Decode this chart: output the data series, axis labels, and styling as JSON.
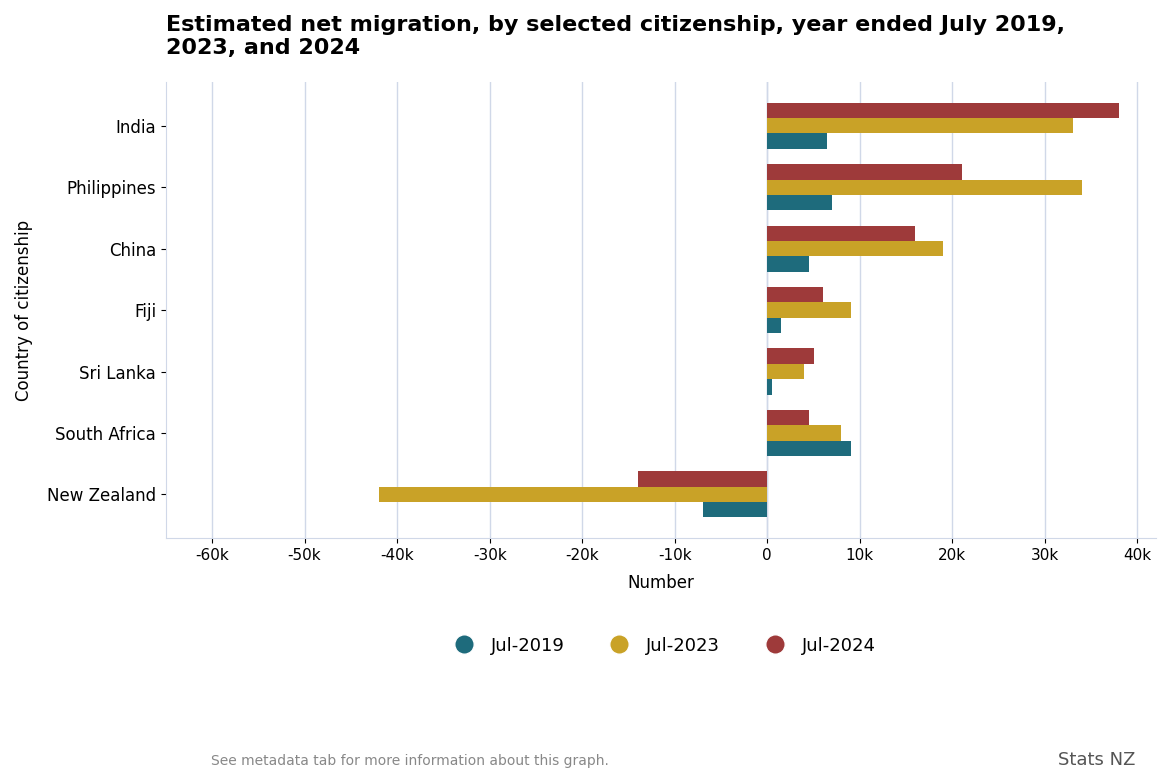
{
  "title": "Estimated net migration, by selected citizenship, year ended July 2019,\n2023, and 2024",
  "categories": [
    "India",
    "Philippines",
    "China",
    "Fiji",
    "Sri Lanka",
    "South Africa",
    "New Zealand"
  ],
  "series": {
    "Jul-2019": [
      6500,
      7000,
      4500,
      1500,
      500,
      9000,
      -7000
    ],
    "Jul-2023": [
      33000,
      34000,
      19000,
      9000,
      4000,
      8000,
      -42000
    ],
    "Jul-2024": [
      38000,
      21000,
      16000,
      6000,
      5000,
      4500,
      -14000
    ]
  },
  "colors": {
    "Jul-2019": "#1e6b7c",
    "Jul-2023": "#c9a227",
    "Jul-2024": "#9e3a3a"
  },
  "xlabel": "Number",
  "ylabel": "Country of citizenship",
  "xlim": [
    -65000,
    42000
  ],
  "xticks": [
    -60000,
    -50000,
    -40000,
    -30000,
    -20000,
    -10000,
    0,
    10000,
    20000,
    30000,
    40000
  ],
  "xtick_labels": [
    "-60k",
    "-50k",
    "-40k",
    "-30k",
    "-20k",
    "-10k",
    "0",
    "10k",
    "20k",
    "30k",
    "40k"
  ],
  "footer_text": "See metadata tab for more information about this graph.",
  "branding": "Stats NZ",
  "background_color": "#ffffff",
  "grid_color": "#d0d8e8",
  "bar_height": 0.25,
  "legend_order": [
    "Jul-2019",
    "Jul-2023",
    "Jul-2024"
  ]
}
